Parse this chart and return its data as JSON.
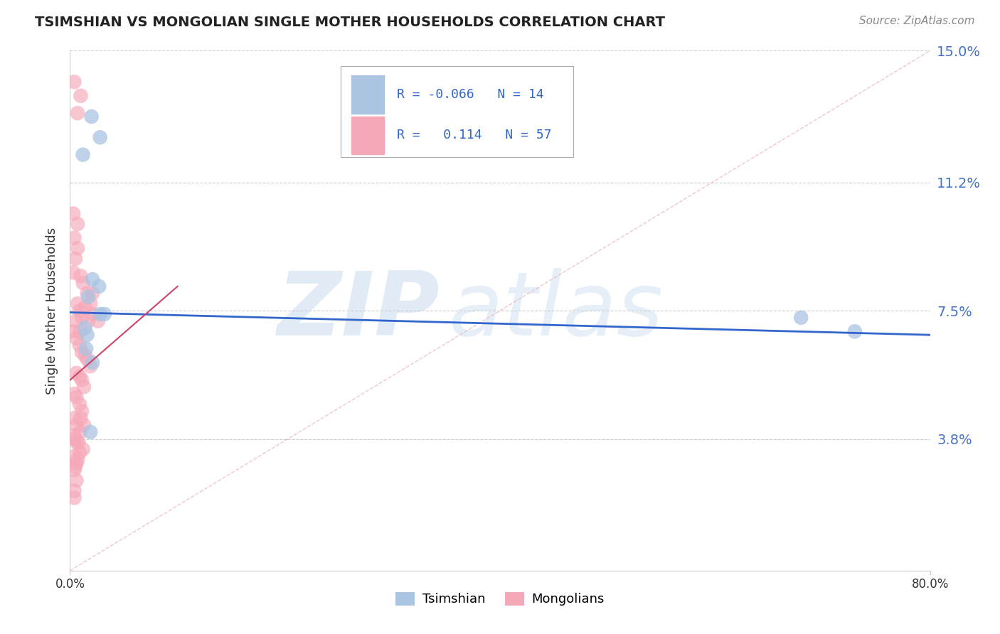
{
  "title": "TSIMSHIAN VS MONGOLIAN SINGLE MOTHER HOUSEHOLDS CORRELATION CHART",
  "source": "Source: ZipAtlas.com",
  "ylabel": "Single Mother Households",
  "xlim": [
    0.0,
    0.8
  ],
  "ylim": [
    0.0,
    0.15
  ],
  "ytick_vals": [
    0.038,
    0.075,
    0.112,
    0.15
  ],
  "ytick_labels": [
    "3.8%",
    "7.5%",
    "11.2%",
    "15.0%"
  ],
  "xtick_vals": [
    0.0,
    0.8
  ],
  "xtick_labels": [
    "0.0%",
    "80.0%"
  ],
  "tsimshian_color": "#aac4e2",
  "mongolian_color": "#f5a8b8",
  "tsimshian_line_color": "#3366cc",
  "mongolian_line_color": "#cc4466",
  "diag_line_color": "#e8b0b8",
  "background_color": "#ffffff",
  "grid_color": "#cccccc",
  "ytick_color": "#4472c4",
  "xtick_color": "#333333",
  "title_color": "#222222",
  "source_color": "#888888",
  "watermark_zip_color": "#c8dcf0",
  "watermark_atlas_color": "#c8dcf0",
  "legend_border_color": "#aaaaaa",
  "tsimshian_points": [
    [
      0.02,
      0.131
    ],
    [
      0.028,
      0.125
    ],
    [
      0.012,
      0.12
    ],
    [
      0.021,
      0.084
    ],
    [
      0.027,
      0.082
    ],
    [
      0.017,
      0.079
    ],
    [
      0.028,
      0.074
    ],
    [
      0.032,
      0.074
    ],
    [
      0.014,
      0.07
    ],
    [
      0.016,
      0.068
    ],
    [
      0.015,
      0.064
    ],
    [
      0.021,
      0.06
    ],
    [
      0.019,
      0.04
    ],
    [
      0.68,
      0.073
    ],
    [
      0.73,
      0.069
    ]
  ],
  "mongolian_points": [
    [
      0.004,
      0.141
    ],
    [
      0.01,
      0.137
    ],
    [
      0.007,
      0.132
    ],
    [
      0.003,
      0.103
    ],
    [
      0.007,
      0.1
    ],
    [
      0.004,
      0.096
    ],
    [
      0.007,
      0.093
    ],
    [
      0.005,
      0.09
    ],
    [
      0.003,
      0.086
    ],
    [
      0.01,
      0.085
    ],
    [
      0.012,
      0.083
    ],
    [
      0.016,
      0.08
    ],
    [
      0.007,
      0.077
    ],
    [
      0.009,
      0.075
    ],
    [
      0.011,
      0.073
    ],
    [
      0.017,
      0.072
    ],
    [
      0.021,
      0.08
    ],
    [
      0.021,
      0.074
    ],
    [
      0.019,
      0.077
    ],
    [
      0.026,
      0.072
    ],
    [
      0.005,
      0.072
    ],
    [
      0.009,
      0.069
    ],
    [
      0.014,
      0.076
    ],
    [
      0.004,
      0.069
    ],
    [
      0.006,
      0.067
    ],
    [
      0.009,
      0.065
    ],
    [
      0.011,
      0.063
    ],
    [
      0.014,
      0.062
    ],
    [
      0.016,
      0.061
    ],
    [
      0.019,
      0.059
    ],
    [
      0.006,
      0.057
    ],
    [
      0.009,
      0.056
    ],
    [
      0.011,
      0.055
    ],
    [
      0.013,
      0.053
    ],
    [
      0.004,
      0.051
    ],
    [
      0.006,
      0.05
    ],
    [
      0.009,
      0.048
    ],
    [
      0.011,
      0.046
    ],
    [
      0.004,
      0.044
    ],
    [
      0.006,
      0.042
    ],
    [
      0.009,
      0.04
    ],
    [
      0.004,
      0.039
    ],
    [
      0.006,
      0.037
    ],
    [
      0.009,
      0.034
    ],
    [
      0.004,
      0.033
    ],
    [
      0.006,
      0.031
    ],
    [
      0.004,
      0.029
    ],
    [
      0.006,
      0.026
    ],
    [
      0.004,
      0.023
    ],
    [
      0.004,
      0.021
    ],
    [
      0.004,
      0.038
    ],
    [
      0.008,
      0.037
    ],
    [
      0.012,
      0.035
    ],
    [
      0.007,
      0.032
    ],
    [
      0.005,
      0.03
    ],
    [
      0.01,
      0.044
    ],
    [
      0.013,
      0.042
    ]
  ],
  "tsimshian_line_x": [
    0.0,
    0.8
  ],
  "tsimshian_line_y": [
    0.0745,
    0.068
  ],
  "mongolian_line_x": [
    0.0,
    0.1
  ],
  "mongolian_line_y": [
    0.055,
    0.082
  ],
  "diag_line_x": [
    0.0,
    0.8
  ],
  "diag_line_y": [
    0.0,
    0.15
  ]
}
